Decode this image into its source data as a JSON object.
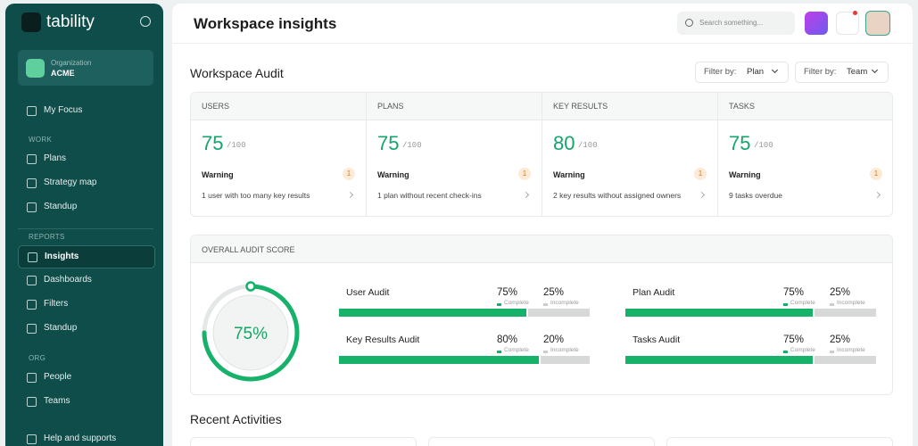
{
  "sidebar": {
    "brand": "tability",
    "org_label": "Organization",
    "org_name": "ACME",
    "top_item": "My Focus",
    "groups": [
      {
        "heading": "WORK",
        "items": [
          "Plans",
          "Strategy map",
          "Standup"
        ]
      },
      {
        "heading": "REPORTS",
        "items": [
          "Insights",
          "Dashboards",
          "Filters",
          "Standup"
        ]
      },
      {
        "heading": "ORG",
        "items": [
          "People",
          "Teams"
        ]
      }
    ],
    "footer_item": "Help and supports"
  },
  "header": {
    "title": "Workspace insights",
    "search_placeholder": "Search something..."
  },
  "audit": {
    "title": "Workspace Audit",
    "filters": [
      {
        "label": "Filter by:",
        "value": "Plan"
      },
      {
        "label": "Filter by:",
        "value": "Team"
      }
    ],
    "cards": [
      {
        "title": "USERS",
        "score": 75,
        "max": "/100",
        "status": "Warning",
        "count": 1,
        "detail": "1 user with too many key results"
      },
      {
        "title": "PLANS",
        "score": 75,
        "max": "/100",
        "status": "Warning",
        "count": 1,
        "detail": "1 plan without recent check-ins"
      },
      {
        "title": "KEY RESULTS",
        "score": 80,
        "max": "/100",
        "status": "Warning",
        "count": 1,
        "detail": "2 key results without assigned owners"
      },
      {
        "title": "TASKS",
        "score": 75,
        "max": "/100",
        "status": "Warning",
        "count": 1,
        "detail": "9 tasks overdue"
      }
    ]
  },
  "overall": {
    "title": "OVERALL AUDIT SCORE",
    "score": 75,
    "score_label": "75%",
    "complete_text": "Complete",
    "incomplete_text": "Incomplete",
    "items": [
      {
        "name": "User Audit",
        "complete": 75,
        "complete_label": "75%",
        "incomplete": 25,
        "incomplete_label": "25%"
      },
      {
        "name": "Plan Audit",
        "complete": 75,
        "complete_label": "75%",
        "incomplete": 25,
        "incomplete_label": "25%"
      },
      {
        "name": "Key Results Audit",
        "complete": 80,
        "complete_label": "80%",
        "incomplete": 20,
        "incomplete_label": "20%"
      },
      {
        "name": "Tasks Audit",
        "complete": 75,
        "complete_label": "75%",
        "incomplete": 25,
        "incomplete_label": "25%"
      }
    ]
  },
  "recent": {
    "title": "Recent Activities"
  }
}
